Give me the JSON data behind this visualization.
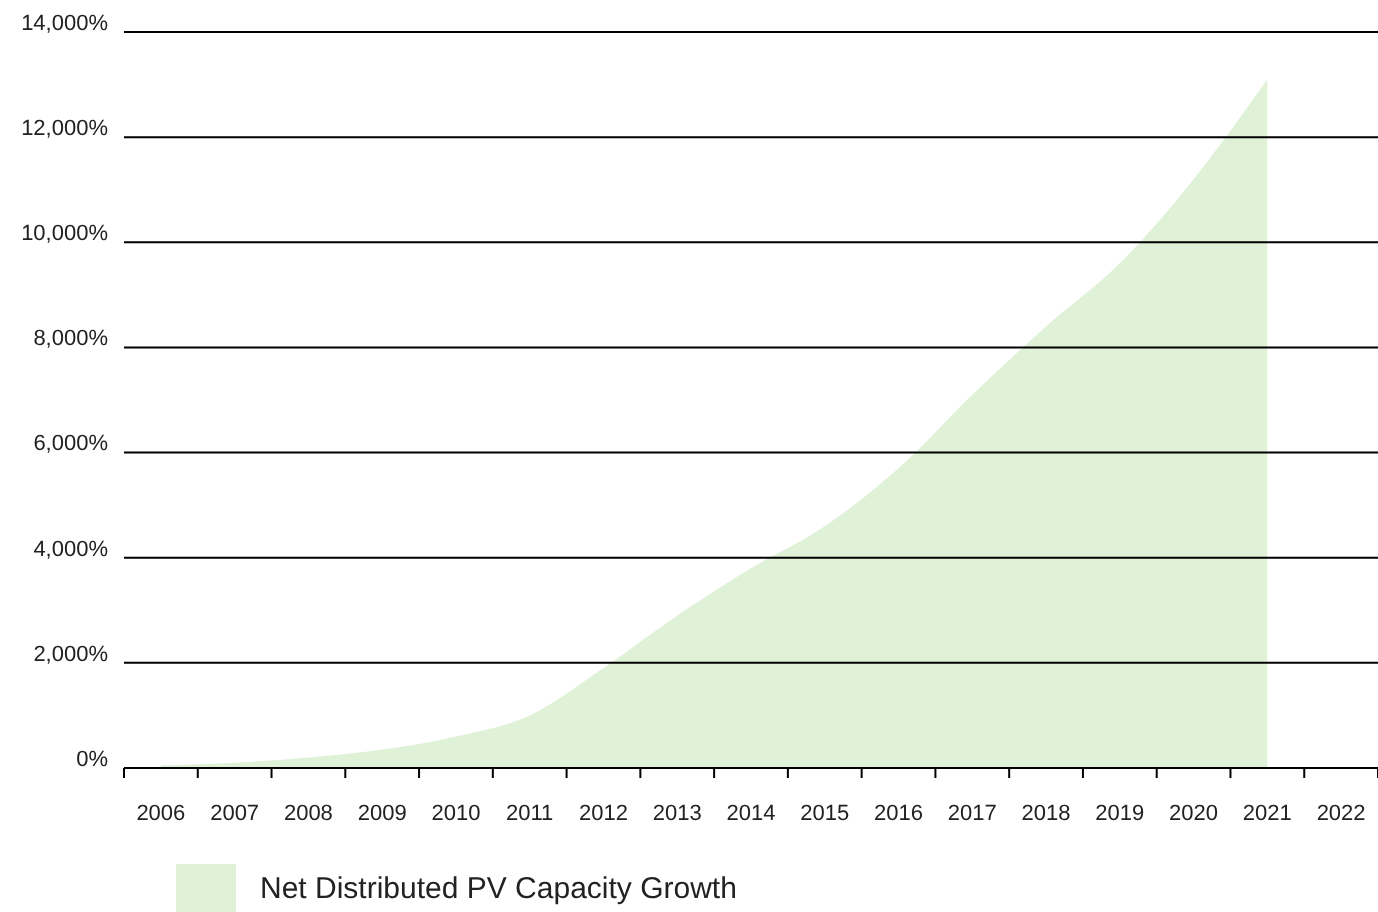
{
  "chart_data": {
    "type": "area",
    "categories": [
      "2006",
      "2007",
      "2008",
      "2009",
      "2010",
      "2011",
      "2012",
      "2013",
      "2014",
      "2015",
      "2016",
      "2017",
      "2018",
      "2019",
      "2020",
      "2021",
      "2022"
    ],
    "series": [
      {
        "name": "Net Distributed PV Capacity Growth",
        "color": "#dff2d8",
        "values": [
          50,
          100,
          200,
          350,
          600,
          1000,
          1900,
          2900,
          3800,
          4600,
          5700,
          7100,
          8400,
          9600,
          11200,
          13100,
          null
        ]
      }
    ],
    "ylim": [
      0,
      14000
    ],
    "yticks": [
      {
        "value": 0,
        "label": "0%"
      },
      {
        "value": 2000,
        "label": "2,000%"
      },
      {
        "value": 4000,
        "label": "4,000%"
      },
      {
        "value": 6000,
        "label": "6,000%"
      },
      {
        "value": 8000,
        "label": "8,000%"
      },
      {
        "value": 10000,
        "label": "10,000%"
      },
      {
        "value": 12000,
        "label": "12,000%"
      },
      {
        "value": 14000,
        "label": "14,000%"
      }
    ],
    "grid": "y",
    "legend": "bottom left"
  }
}
